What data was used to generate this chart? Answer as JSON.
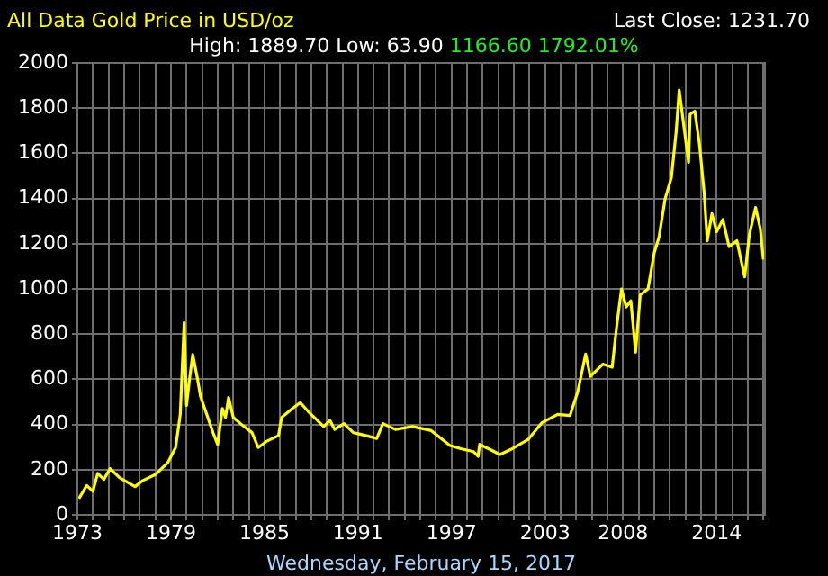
{
  "chart_data": {
    "type": "line",
    "title": "All Data Gold Price in USD/oz",
    "subtitle": "High: 1889.70 Low: 63.90",
    "annotations": [
      "Last Close: 1231.70",
      "1166.60 1792.01%"
    ],
    "xlabel": "Wednesday, February 15, 2017",
    "x": [
      1973.1,
      1973.6,
      1974.0,
      1974.3,
      1974.7,
      1975.1,
      1975.7,
      1976.7,
      1977.2,
      1978.0,
      1978.8,
      1979.3,
      1979.6,
      1979.85,
      1980.0,
      1980.2,
      1980.4,
      1980.7,
      1980.9,
      1981.3,
      1981.7,
      1982.0,
      1982.3,
      1982.5,
      1982.7,
      1983.0,
      1983.6,
      1984.2,
      1984.6,
      1985.1,
      1985.9,
      1986.1,
      1986.8,
      1987.3,
      1987.8,
      1988.8,
      1989.2,
      1989.5,
      1990.1,
      1990.7,
      1991.5,
      1992.2,
      1992.6,
      1993.4,
      1994.5,
      1995.7,
      1996.9,
      1997.6,
      1998.4,
      1998.7,
      1998.8,
      1999.6,
      2000.1,
      2000.9,
      2001.9,
      2002.8,
      2003.8,
      2004.6,
      2005.1,
      2005.6,
      2005.9,
      2006.7,
      2007.3,
      2007.6,
      2007.9,
      2008.2,
      2008.5,
      2008.8,
      2009.1,
      2009.6,
      2010.0,
      2010.3,
      2010.7,
      2011.1,
      2011.4,
      2011.6,
      2011.9,
      2012.2,
      2012.3,
      2012.6,
      2012.9,
      2013.2,
      2013.4,
      2013.7,
      2014.0,
      2014.4,
      2014.8,
      2015.3,
      2015.8,
      2016.1,
      2016.5,
      2016.8,
      2017.0
    ],
    "series": [
      {
        "color": "#ffff00",
        "values": [
          72,
          130,
          104,
          184,
          157,
          205,
          165,
          125,
          152,
          178,
          231,
          298,
          444,
          851,
          484,
          604,
          710,
          604,
          524,
          444,
          364,
          311,
          471,
          431,
          519,
          431,
          396,
          364,
          298,
          324,
          351,
          431,
          471,
          497,
          458,
          391,
          418,
          378,
          404,
          364,
          351,
          338,
          404,
          378,
          391,
          373,
          307,
          293,
          280,
          259,
          312,
          285,
          267,
          293,
          333,
          408,
          445,
          440,
          547,
          712,
          613,
          667,
          653,
          840,
          1000,
          920,
          947,
          720,
          973,
          1000,
          1160,
          1227,
          1400,
          1493,
          1693,
          1880,
          1720,
          1560,
          1773,
          1787,
          1640,
          1427,
          1213,
          1333,
          1253,
          1307,
          1187,
          1213,
          1053,
          1240,
          1360,
          1267,
          1130
        ]
      }
    ],
    "xlim": [
      1973,
      2017.1
    ],
    "xticks": [
      1973,
      {
        "value": 1974,
        "label": null
      },
      {
        "value": 1975,
        "label": null
      },
      {
        "value": 1976,
        "label": null
      },
      {
        "value": 1977,
        "label": null
      },
      {
        "value": 1978,
        "label": null
      },
      1979,
      {
        "value": 1980,
        "label": null
      },
      {
        "value": 1981,
        "label": null
      },
      {
        "value": 1982,
        "label": null
      },
      {
        "value": 1983,
        "label": null
      },
      {
        "value": 1984,
        "label": null
      },
      1985,
      {
        "value": 1986,
        "label": null
      },
      {
        "value": 1987,
        "label": null
      },
      {
        "value": 1988,
        "label": null
      },
      {
        "value": 1989,
        "label": null
      },
      {
        "value": 1990,
        "label": null
      },
      1991,
      {
        "value": 1992,
        "label": null
      },
      {
        "value": 1993,
        "label": null
      },
      {
        "value": 1994,
        "label": null
      },
      {
        "value": 1995,
        "label": null
      },
      {
        "value": 1996,
        "label": null
      },
      1997,
      {
        "value": 1998,
        "label": null
      },
      {
        "value": 1999,
        "label": null
      },
      {
        "value": 2000,
        "label": null
      },
      {
        "value": 2001,
        "label": null
      },
      {
        "value": 2002,
        "label": null
      },
      2003,
      {
        "value": 2004,
        "label": null
      },
      {
        "value": 2005,
        "label": null
      },
      {
        "value": 2006,
        "label": null
      },
      {
        "value": 2007,
        "label": null
      },
      2008,
      {
        "value": 2009,
        "label": null
      },
      {
        "value": 2010,
        "label": null
      },
      {
        "value": 2011,
        "label": null
      },
      {
        "value": 2012,
        "label": null
      },
      {
        "value": 2013,
        "label": null
      },
      2014,
      {
        "value": 2015,
        "label": null
      },
      {
        "value": 2016,
        "label": null
      },
      {
        "value": 2017,
        "label": null
      }
    ],
    "ylim": [
      0,
      2000
    ],
    "yticks": [
      0,
      200,
      400,
      600,
      800,
      1000,
      1200,
      1400,
      1600,
      1800,
      2000
    ],
    "grid": true,
    "legend": false
  }
}
